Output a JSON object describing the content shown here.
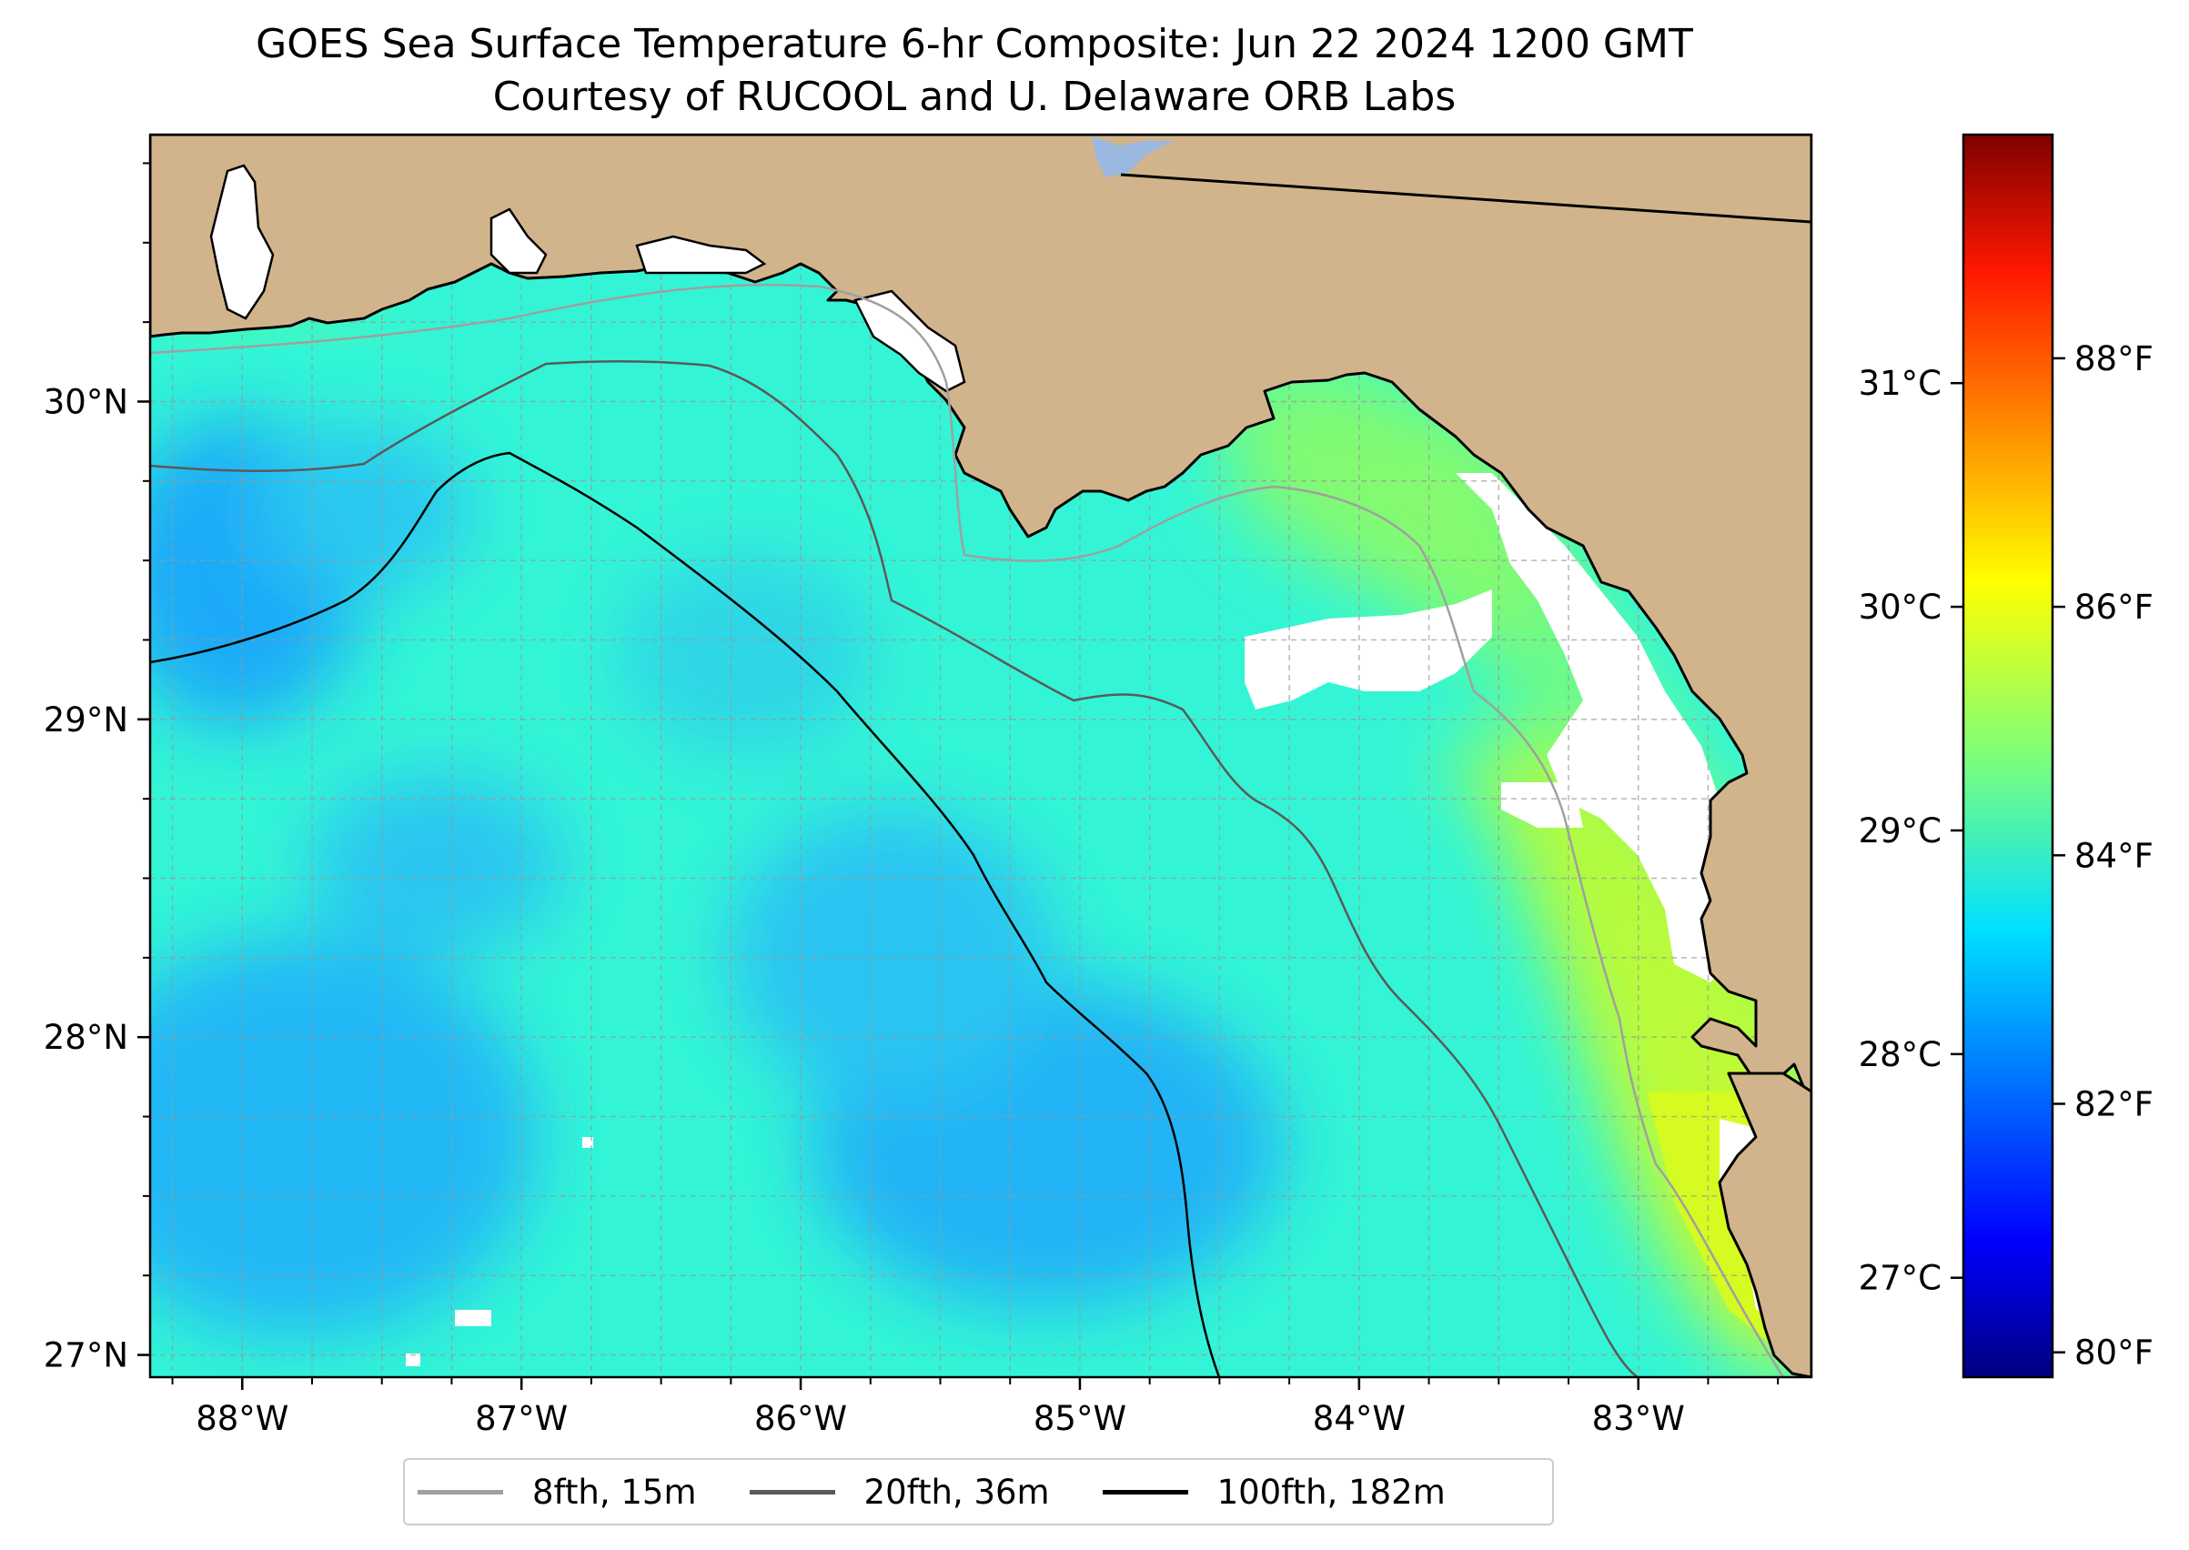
{
  "title": {
    "line1": "GOES Sea Surface Temperature 6-hr Composite: Jun 22 2024 1200 GMT",
    "line2": "Courtesy of RUCOOL and U. Delaware ORB Labs"
  },
  "map": {
    "lon_range": [
      -88.33,
      -82.38
    ],
    "lat_range": [
      26.93,
      30.84
    ],
    "lon_ticks": [
      {
        "value": -88,
        "label": "88°W"
      },
      {
        "value": -87,
        "label": "87°W"
      },
      {
        "value": -86,
        "label": "86°W"
      },
      {
        "value": -85,
        "label": "85°W"
      },
      {
        "value": -84,
        "label": "84°W"
      },
      {
        "value": -83,
        "label": "83°W"
      }
    ],
    "lat_ticks": [
      {
        "value": 30,
        "label": "30°N"
      },
      {
        "value": 29,
        "label": "29°N"
      },
      {
        "value": 28,
        "label": "28°N"
      },
      {
        "value": 27,
        "label": "27°N"
      }
    ],
    "gridlines": "dashed",
    "colors": {
      "land": "#d2b48c",
      "no_data": "#ffffff",
      "lake": "#9ab8e0",
      "contour_8fth": "#a0a0a0",
      "contour_20fth": "#5a5a5a",
      "contour_100fth": "#000000"
    }
  },
  "colorbar": {
    "colormap": "jet",
    "celsius_ticks": [
      {
        "value": 27,
        "label": "27°C"
      },
      {
        "value": 28,
        "label": "28°C"
      },
      {
        "value": 29,
        "label": "29°C"
      },
      {
        "value": 30,
        "label": "30°C"
      },
      {
        "value": 31,
        "label": "31°C"
      }
    ],
    "fahrenheit_ticks": [
      {
        "value": 80,
        "label": "80°F"
      },
      {
        "value": 82,
        "label": "82°F"
      },
      {
        "value": 84,
        "label": "84°F"
      },
      {
        "value": 86,
        "label": "86°F"
      },
      {
        "value": 88,
        "label": "88°F"
      }
    ],
    "range_f": [
      79.8,
      89.8
    ]
  },
  "legend": {
    "items": [
      {
        "label": "8fth, 15m",
        "color": "#a0a0a0"
      },
      {
        "label": "20fth, 36m",
        "color": "#5a5a5a"
      },
      {
        "label": "100fth, 182m",
        "color": "#000000"
      }
    ],
    "placement": "bottom-center"
  }
}
